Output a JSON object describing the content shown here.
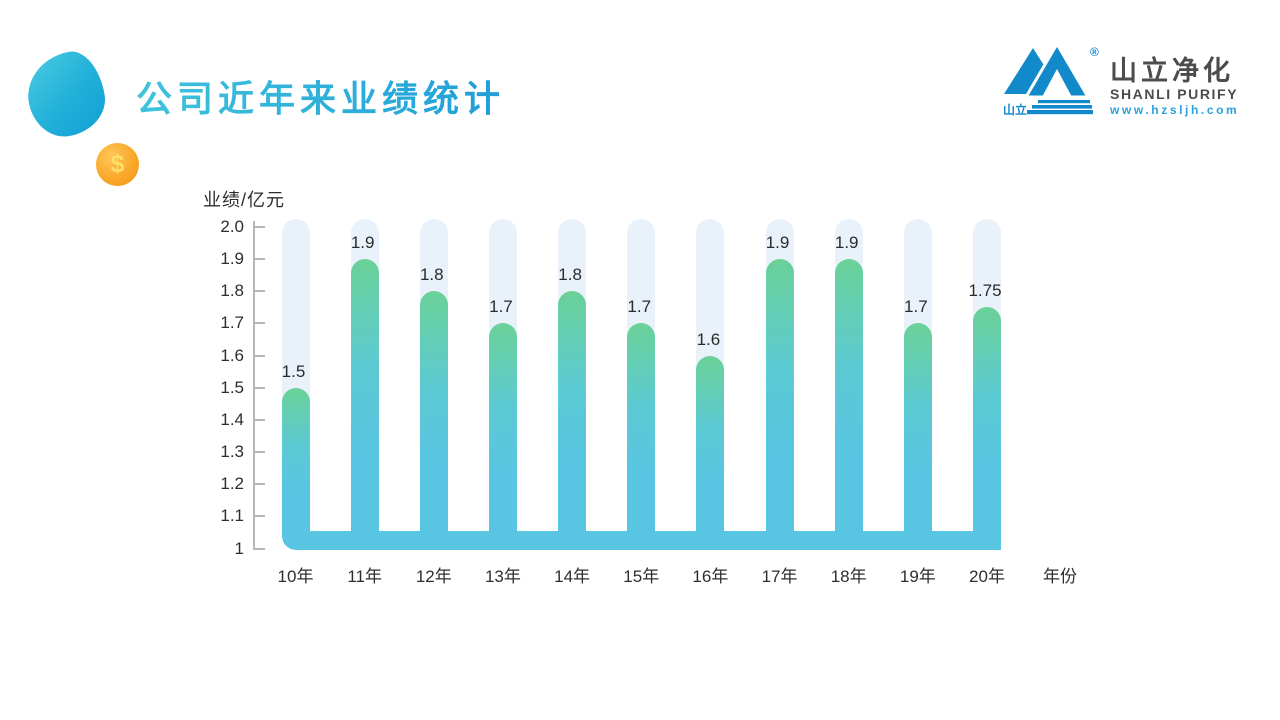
{
  "header": {
    "title": "公司近年来业绩统计",
    "coin_symbol": "$"
  },
  "logo": {
    "mark_label": "山立",
    "registered_mark": "®",
    "name_cn": "山立净化",
    "name_en": "SHANLI PURIFY",
    "website": "www.hzsljh.com"
  },
  "chart_data": {
    "type": "bar",
    "title": "公司近年来业绩统计",
    "ylabel": "业绩/亿元",
    "xlabel": "年份",
    "categories": [
      "10年",
      "11年",
      "12年",
      "13年",
      "14年",
      "15年",
      "16年",
      "17年",
      "18年",
      "19年",
      "20年"
    ],
    "values": [
      1.5,
      1.9,
      1.8,
      1.7,
      1.8,
      1.7,
      1.6,
      1.9,
      1.9,
      1.7,
      1.75
    ],
    "value_labels": [
      "1.5",
      "1.9",
      "1.8",
      "1.7",
      "1.8",
      "1.7",
      "1.6",
      "1.9",
      "1.9",
      "1.7",
      "1.75"
    ],
    "ylim": [
      1,
      2
    ],
    "yticks": [
      "2.0",
      "1.9",
      "1.8",
      "1.7",
      "1.6",
      "1.5",
      "1.4",
      "1.3",
      "1.2",
      "1.1",
      "1"
    ],
    "grid": false,
    "legend": false,
    "colors": {
      "bar_top": "#6ad197",
      "bar_bottom": "#58c5e2",
      "track": "#e9f1fb",
      "baseline_strip": "#58c5e2",
      "axis": "#b0b9c0",
      "label": "#2e2e2e",
      "title_gradient_start": "#3fc3dc",
      "title_gradient_end": "#1f9ed8",
      "logo_blue": "#1189ca",
      "coin_orange": "#f9a82a"
    }
  }
}
